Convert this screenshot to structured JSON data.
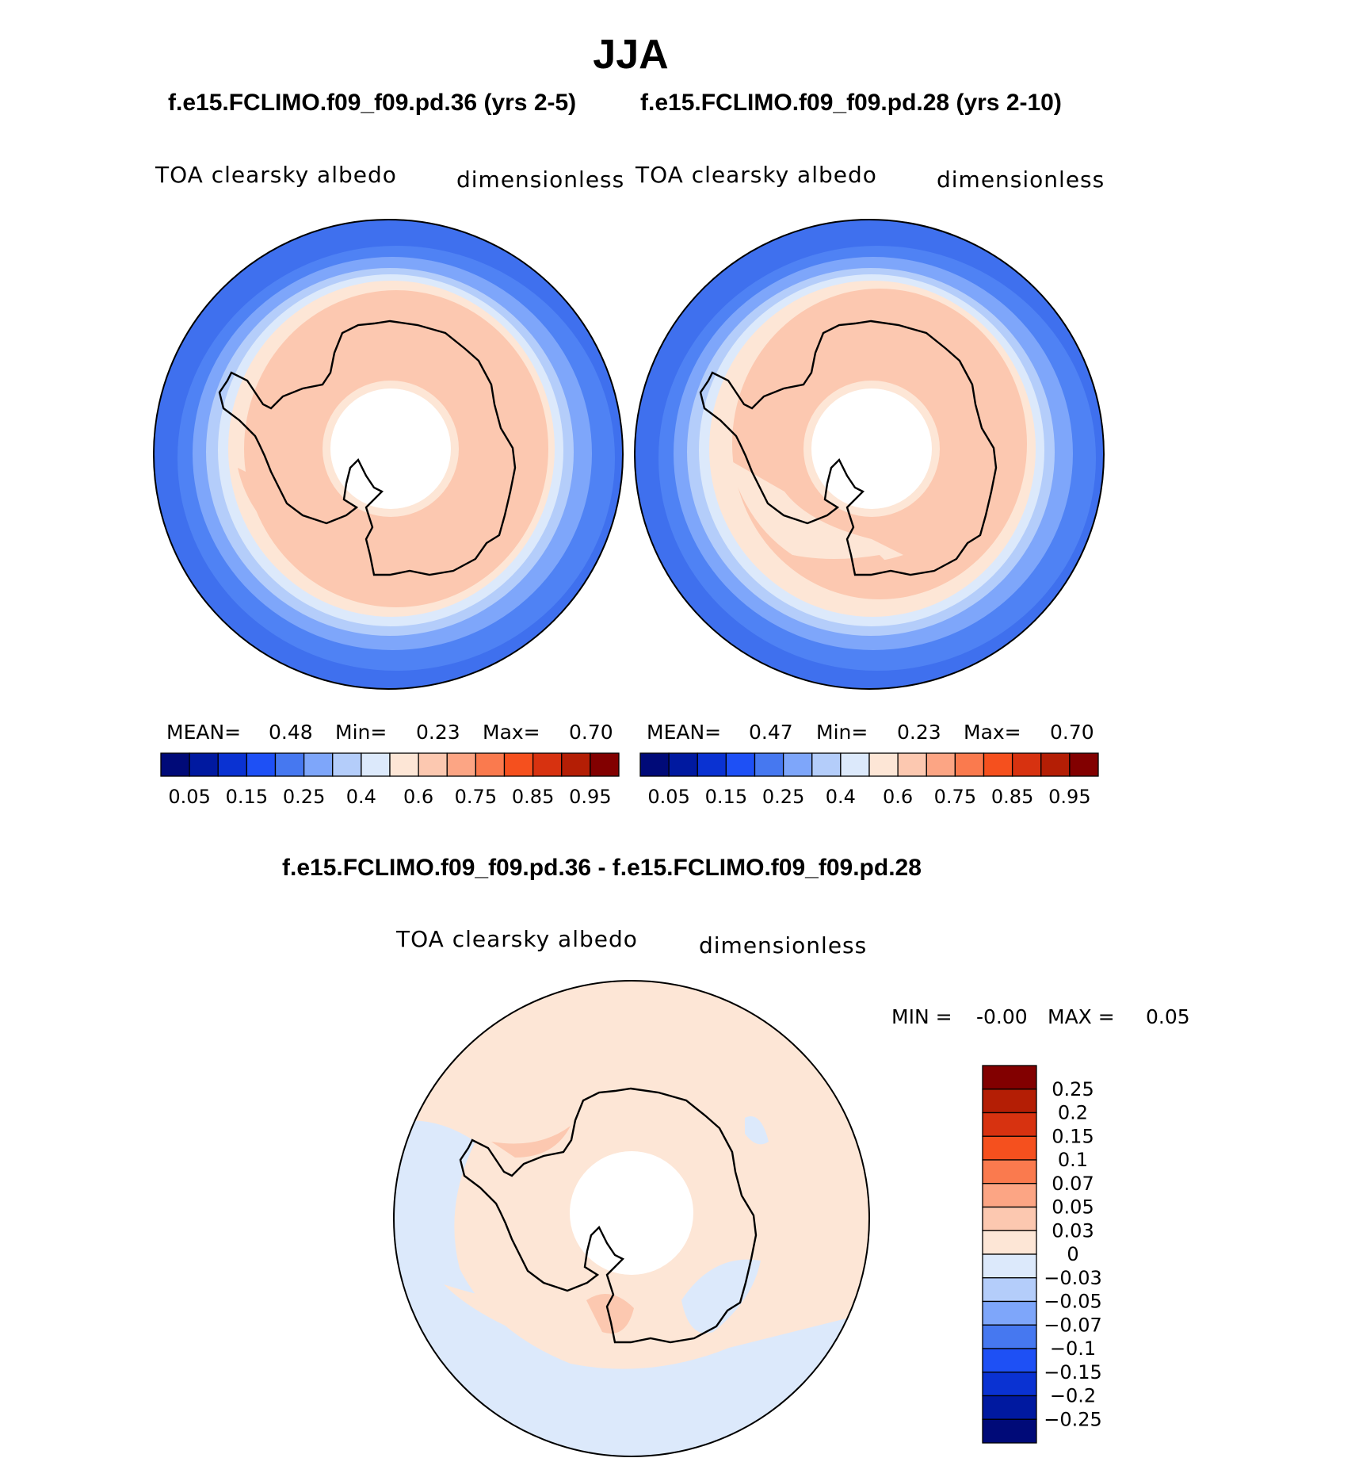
{
  "title": "JJA",
  "panels": [
    {
      "case_label": "f.e15.FCLIMO.f09_f09.pd.36 (yrs 2-5)",
      "variable": "TOA clearsky albedo",
      "units": "dimensionless",
      "stats": {
        "mean_label": "MEAN=",
        "mean": "0.48",
        "min_label": "Min=",
        "min": "0.23",
        "max_label": "Max=",
        "max": "0.70"
      }
    },
    {
      "case_label": "f.e15.FCLIMO.f09_f09.pd.28 (yrs 2-10)",
      "variable": "TOA clearsky albedo",
      "units": "dimensionless",
      "stats": {
        "mean_label": "MEAN=",
        "mean": "0.47",
        "min_label": "Min=",
        "min": "0.23",
        "max_label": "Max=",
        "max": "0.70"
      }
    }
  ],
  "colorbar_top": {
    "colors": [
      "#000a78",
      "#0019a0",
      "#0a32d2",
      "#1e50f5",
      "#4678f0",
      "#7ea6fa",
      "#b4cdfa",
      "#dce9fb",
      "#fde6d6",
      "#fcc8b0",
      "#fca584",
      "#fa7a4e",
      "#f5501e",
      "#d73210",
      "#b41e05",
      "#820000"
    ],
    "tick_labels": [
      "0.05",
      "0.15",
      "0.25",
      "0.4",
      "0.6",
      "0.75",
      "0.85",
      "0.95"
    ]
  },
  "difference": {
    "title": "f.e15.FCLIMO.f09_f09.pd.36 - f.e15.FCLIMO.f09_f09.pd.28",
    "variable": "TOA clearsky albedo",
    "units": "dimensionless",
    "min_label": "MIN =",
    "min": "-0.00",
    "max_label": "MAX =",
    "max": "0.05"
  },
  "colorbar_diff": {
    "colors": [
      "#820000",
      "#b41e05",
      "#d73210",
      "#f5501e",
      "#fa7a4e",
      "#fca584",
      "#fcc8b0",
      "#fde6d6",
      "#dce9fb",
      "#b4cdfa",
      "#7ea6fa",
      "#4678f0",
      "#1e50f5",
      "#0a32d2",
      "#0019a0",
      "#000a78"
    ],
    "tick_labels": [
      "0.25",
      "0.2",
      "0.15",
      "0.1",
      "0.07",
      "0.05",
      "0.03",
      "0",
      "−0.03",
      "−0.05",
      "−0.07",
      "−0.1",
      "−0.15",
      "−0.2",
      "−0.25"
    ]
  }
}
